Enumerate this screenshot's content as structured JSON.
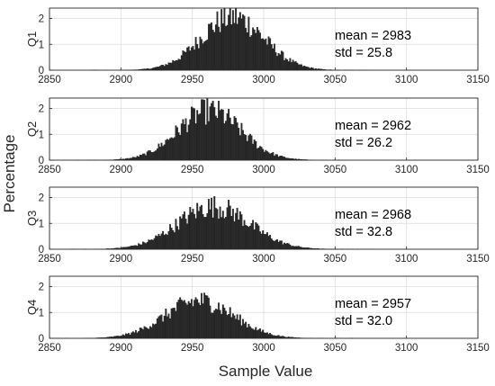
{
  "figure": {
    "ylabel": "Percentage",
    "xlabel": "Sample Value"
  },
  "chart_data": [
    {
      "type": "bar",
      "panel_label": "Q1",
      "xlim": [
        2850,
        3150
      ],
      "ylim": [
        0,
        2.4
      ],
      "xticks": [
        "2850",
        "2900",
        "2950",
        "3000",
        "3050",
        "3100",
        "3150"
      ],
      "yticks": [
        "0",
        "1",
        "2"
      ],
      "annotations": [
        "mean = 2983",
        "std = 25.8"
      ],
      "grid": true,
      "bin_width": 1,
      "distribution": {
        "center": 2978,
        "sd": 22,
        "peak": 2.05
      },
      "color": "#2b2b2b"
    },
    {
      "type": "bar",
      "panel_label": "Q2",
      "xlim": [
        2850,
        3150
      ],
      "ylim": [
        0,
        2.4
      ],
      "xticks": [
        "2850",
        "2900",
        "2950",
        "3000",
        "3050",
        "3100",
        "3150"
      ],
      "yticks": [
        "0",
        "1",
        "2"
      ],
      "annotations": [
        "mean = 2962",
        "std = 26.2"
      ],
      "grid": true,
      "bin_width": 1,
      "distribution": {
        "center": 2962,
        "sd": 22,
        "peak": 1.9
      },
      "color": "#2b2b2b"
    },
    {
      "type": "bar",
      "panel_label": "Q3",
      "xlim": [
        2850,
        3150
      ],
      "ylim": [
        0,
        2.4
      ],
      "xticks": [
        "2850",
        "2900",
        "2950",
        "3000",
        "3050",
        "3100",
        "3150"
      ],
      "yticks": [
        "0",
        "1",
        "2"
      ],
      "annotations": [
        "mean = 2968",
        "std = 32.8"
      ],
      "grid": true,
      "bin_width": 1,
      "distribution": {
        "center": 2965,
        "sd": 25,
        "peak": 1.65
      },
      "color": "#2b2b2b"
    },
    {
      "type": "bar",
      "panel_label": "Q4",
      "xlim": [
        2850,
        3150
      ],
      "ylim": [
        0,
        2.4
      ],
      "xticks": [
        "2850",
        "2900",
        "2950",
        "3000",
        "3050",
        "3100",
        "3150"
      ],
      "yticks": [
        "0",
        "1",
        "2"
      ],
      "annotations": [
        "mean = 2957",
        "std = 32.0"
      ],
      "grid": true,
      "bin_width": 1,
      "distribution": {
        "center": 2955,
        "sd": 24,
        "peak": 1.45
      },
      "color": "#2b2b2b"
    }
  ]
}
